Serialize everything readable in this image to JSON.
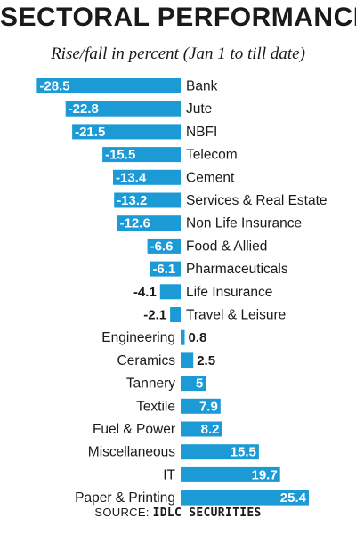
{
  "chart_data": {
    "type": "bar",
    "orientation": "horizontal",
    "title": "SECTORAL PERFORMANCE",
    "subtitle": "Rise/fall in percent (Jan 1 to till date)",
    "categories": [
      "Bank",
      "Jute",
      "NBFI",
      "Telecom",
      "Cement",
      "Services & Real Estate",
      "Non Life Insurance",
      "Food & Allied",
      "Pharmaceuticals",
      "Life Insurance",
      "Travel & Leisure",
      "Engineering",
      "Ceramics",
      "Tannery",
      "Textile",
      "Fuel & Power",
      "Miscellaneous",
      "IT",
      "Paper & Printing"
    ],
    "values": [
      -28.5,
      -22.8,
      -21.5,
      -15.5,
      -13.4,
      -13.2,
      -12.6,
      -6.6,
      -6.1,
      -4.1,
      -2.1,
      0.8,
      2.5,
      5,
      7.9,
      8.2,
      15.5,
      19.7,
      25.4
    ],
    "value_labels": [
      "-28.5",
      "-22.8",
      "-21.5",
      "-15.5",
      "-13.4",
      "-13.2",
      "-12.6",
      "-6.6",
      "-6.1",
      "-4.1",
      "-2.1",
      "0.8",
      "2.5",
      "5",
      "7.9",
      "8.2",
      "15.5",
      "19.7",
      "25.4"
    ],
    "bar_color": "#1b9ad6",
    "grid": false,
    "legend": "none"
  },
  "source": {
    "label": "SOURCE:",
    "name": "IDLC SECURITIES"
  }
}
